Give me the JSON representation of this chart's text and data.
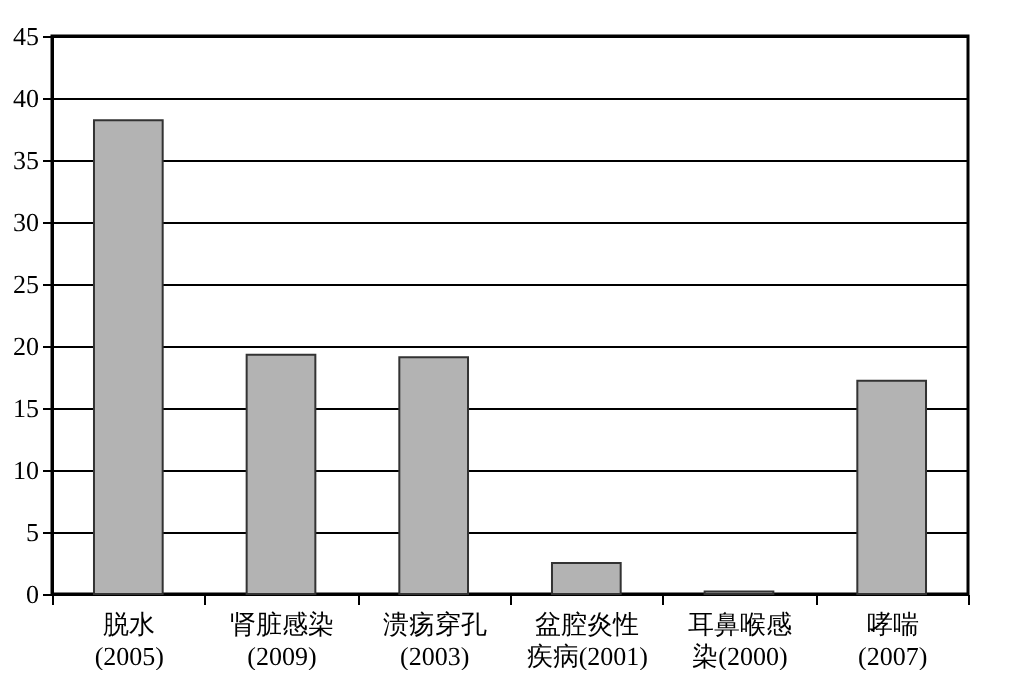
{
  "chart_data": {
    "type": "bar",
    "categories": [
      "脱水 (2005)",
      "肾脏感染 (2009)",
      "溃疡穿孔 (2003)",
      "盆腔炎性疾病(2001)",
      "耳鼻喉感染(2000)",
      "哮喘 (2007)"
    ],
    "values": [
      38.2,
      19.3,
      19.1,
      2.5,
      0.2,
      17.2
    ],
    "color": "#b3b3b3",
    "ylim": [
      0,
      45
    ],
    "yticks": [
      0,
      5,
      10,
      15,
      20,
      25,
      30,
      35,
      40,
      45
    ],
    "grid": "y"
  }
}
